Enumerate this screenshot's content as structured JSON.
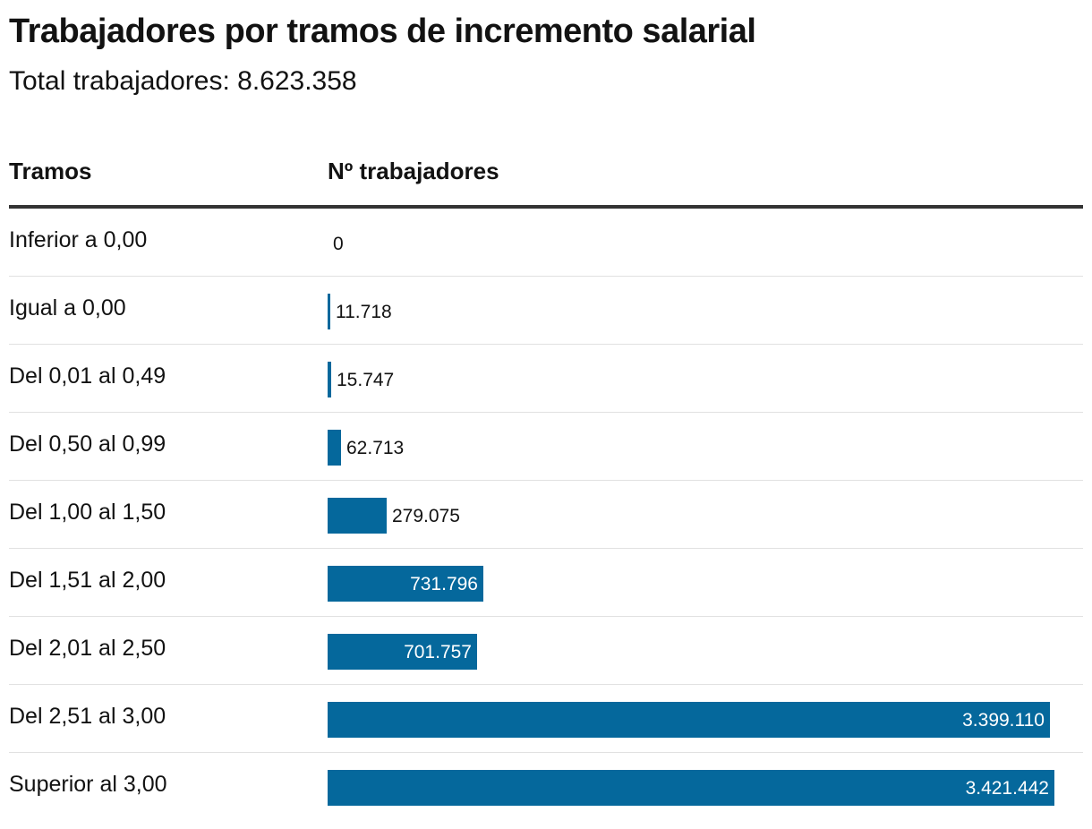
{
  "header": {
    "title": "Trabajadores por tramos de incremento salarial",
    "subtitle": "Total trabajadores: 8.623.358"
  },
  "table": {
    "col_label": "Tramos",
    "col_value": "Nº trabajadores"
  },
  "colors": {
    "bar": "#05689c"
  },
  "chart_data": {
    "type": "bar",
    "orientation": "horizontal",
    "title": "Trabajadores por tramos de incremento salarial",
    "subtitle": "Total trabajadores: 8.623.358",
    "xlabel": "Nº trabajadores",
    "ylabel": "Tramos",
    "categories": [
      "Inferior a 0,00",
      "Igual a 0,00",
      "Del 0,01 al 0,49",
      "Del 0,50 al 0,99",
      "Del 1,00 al 1,50",
      "Del 1,51 al 2,00",
      "Del 2,01 al 2,50",
      "Del 2,51 al 3,00",
      "Superior al 3,00"
    ],
    "values": [
      0,
      11718,
      15747,
      62713,
      279075,
      731796,
      701757,
      3399110,
      3421442
    ],
    "value_labels": [
      "0",
      "11.718",
      "15.747",
      "62.713",
      "279.075",
      "731.796",
      "701.757",
      "3.399.110",
      "3.421.442"
    ],
    "xlim": [
      0,
      3421442
    ],
    "grid": false,
    "legend": "none"
  }
}
